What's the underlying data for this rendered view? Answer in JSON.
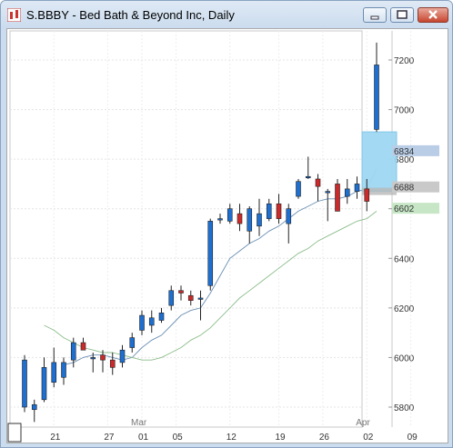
{
  "window": {
    "title": "S.BBBY - Bed Bath & Beyond Inc, Daily",
    "minimize_icon": "minimize-icon",
    "maximize_icon": "maximize-icon",
    "close_icon": "close-icon"
  },
  "chart_data": {
    "type": "candlestick",
    "title": "S.BBBY - Bed Bath & Beyond Inc, Daily",
    "ylim": [
      5720,
      7320
    ],
    "y_ticks": [
      "5800",
      "6000",
      "6200",
      "6400",
      "6600",
      "6800",
      "7000",
      "7200"
    ],
    "x_ticks": [
      "21",
      "27",
      "01",
      "05",
      "12",
      "19",
      "26",
      "02",
      "09"
    ],
    "month_labels": [
      "Mar",
      "Apr"
    ],
    "price_labels": [
      {
        "value": "6834",
        "y": 6834,
        "color": "#b9cde6"
      },
      {
        "value": "6688",
        "y": 6688,
        "color": "#c9c9c9"
      },
      {
        "value": "6602",
        "y": 6602,
        "color": "#c6e6c6"
      }
    ],
    "highlight_zone": {
      "y_high": 6910,
      "y_low": 6670
    },
    "candles": [
      {
        "o": 5800,
        "h": 6010,
        "l": 5780,
        "c": 5990
      },
      {
        "o": 5790,
        "h": 5830,
        "l": 5740,
        "c": 5810
      },
      {
        "o": 5830,
        "h": 6000,
        "l": 5820,
        "c": 5960
      },
      {
        "o": 5900,
        "h": 6040,
        "l": 5880,
        "c": 5980
      },
      {
        "o": 5920,
        "h": 6000,
        "l": 5890,
        "c": 5980
      },
      {
        "o": 5990,
        "h": 6080,
        "l": 5960,
        "c": 6060
      },
      {
        "o": 6060,
        "h": 6080,
        "l": 6030,
        "c": 6030
      },
      {
        "o": 6000,
        "h": 6020,
        "l": 5940,
        "c": 6000
      },
      {
        "o": 6010,
        "h": 6030,
        "l": 5940,
        "c": 5990
      },
      {
        "o": 5990,
        "h": 6020,
        "l": 5930,
        "c": 5960
      },
      {
        "o": 5980,
        "h": 6050,
        "l": 5960,
        "c": 6030
      },
      {
        "o": 6040,
        "h": 6100,
        "l": 6020,
        "c": 6080
      },
      {
        "o": 6110,
        "h": 6190,
        "l": 6090,
        "c": 6170
      },
      {
        "o": 6130,
        "h": 6190,
        "l": 6100,
        "c": 6160
      },
      {
        "o": 6150,
        "h": 6200,
        "l": 6140,
        "c": 6180
      },
      {
        "o": 6210,
        "h": 6290,
        "l": 6190,
        "c": 6270
      },
      {
        "o": 6270,
        "h": 6290,
        "l": 6230,
        "c": 6260
      },
      {
        "o": 6250,
        "h": 6270,
        "l": 6210,
        "c": 6230
      },
      {
        "o": 6240,
        "h": 6270,
        "l": 6150,
        "c": 6240
      },
      {
        "o": 6290,
        "h": 6560,
        "l": 6270,
        "c": 6550
      },
      {
        "o": 6560,
        "h": 6580,
        "l": 6540,
        "c": 6560
      },
      {
        "o": 6550,
        "h": 6620,
        "l": 6540,
        "c": 6600
      },
      {
        "o": 6580,
        "h": 6620,
        "l": 6510,
        "c": 6540
      },
      {
        "o": 6510,
        "h": 6610,
        "l": 6460,
        "c": 6600
      },
      {
        "o": 6530,
        "h": 6640,
        "l": 6490,
        "c": 6580
      },
      {
        "o": 6560,
        "h": 6640,
        "l": 6550,
        "c": 6620
      },
      {
        "o": 6620,
        "h": 6660,
        "l": 6540,
        "c": 6560
      },
      {
        "o": 6540,
        "h": 6620,
        "l": 6460,
        "c": 6600
      },
      {
        "o": 6650,
        "h": 6720,
        "l": 6640,
        "c": 6710
      },
      {
        "o": 6730,
        "h": 6810,
        "l": 6720,
        "c": 6730
      },
      {
        "o": 6720,
        "h": 6740,
        "l": 6630,
        "c": 6690
      },
      {
        "o": 6670,
        "h": 6680,
        "l": 6550,
        "c": 6670
      },
      {
        "o": 6700,
        "h": 6720,
        "l": 6590,
        "c": 6590
      },
      {
        "o": 6650,
        "h": 6720,
        "l": 6620,
        "c": 6680
      },
      {
        "o": 6670,
        "h": 6730,
        "l": 6640,
        "c": 6700
      },
      {
        "o": 6680,
        "h": 6720,
        "l": 6590,
        "c": 6630
      },
      {
        "o": 6920,
        "h": 7270,
        "l": 6910,
        "c": 7180
      }
    ],
    "series": [
      {
        "name": "",
        "color": "#6a8fb4",
        "values": [
          null,
          null,
          null,
          null,
          5970,
          5980,
          6000,
          6010,
          6010,
          6000,
          5990,
          6000,
          6040,
          6070,
          6090,
          6130,
          6170,
          6190,
          6200,
          6260,
          6330,
          6400,
          6430,
          6460,
          6480,
          6510,
          6530,
          6560,
          6590,
          6610,
          6630,
          6640,
          6640,
          6650,
          6670,
          6680,
          6760
        ]
      },
      {
        "name": "",
        "color": "#8bbd8b",
        "values": [
          null,
          null,
          6130,
          6110,
          6080,
          6060,
          6040,
          6030,
          6020,
          6020,
          6010,
          6000,
          5990,
          5990,
          6000,
          6020,
          6040,
          6070,
          6090,
          6120,
          6160,
          6200,
          6240,
          6270,
          6300,
          6330,
          6360,
          6390,
          6420,
          6440,
          6470,
          6490,
          6510,
          6530,
          6550,
          6560,
          6590
        ]
      }
    ]
  }
}
